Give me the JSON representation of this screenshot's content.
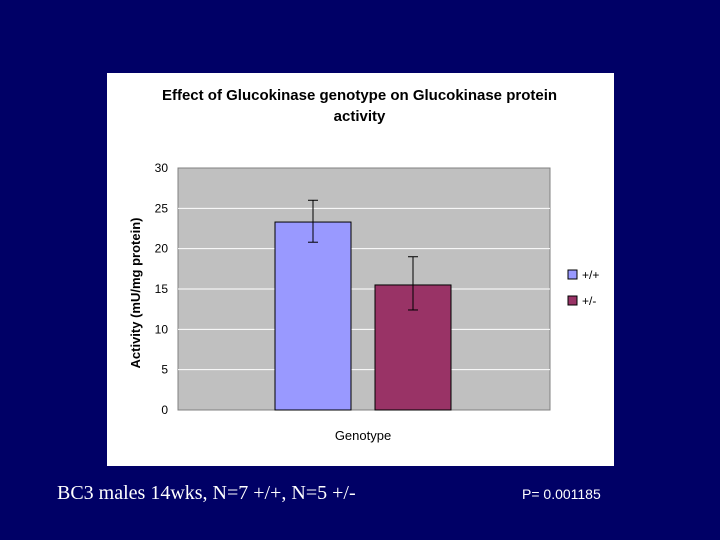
{
  "slide": {
    "caption": "BC3 males 14wks, N=7 +/+, N=5 +/-",
    "pvalue": "P= 0.001185",
    "background_color": "#000066"
  },
  "chart_data": {
    "type": "bar",
    "title": "Effect of Glucokinase genotype on Glucokinase protein activity",
    "xlabel": "Genotype",
    "ylabel": "Activity (mU/mg protein)",
    "ylim": [
      0,
      30
    ],
    "yticks": [
      "0",
      "5",
      "10",
      "15",
      "20",
      "25",
      "30"
    ],
    "grid": true,
    "legend_position": "right",
    "series": [
      {
        "name": "+/+",
        "value": 23.3,
        "error_low": 20.8,
        "error_high": 26.0,
        "color": "#9999ff"
      },
      {
        "name": "+/-",
        "value": 15.5,
        "error_low": 12.4,
        "error_high": 19.0,
        "color": "#993366"
      }
    ],
    "plot_background": "#c0c0c0"
  }
}
